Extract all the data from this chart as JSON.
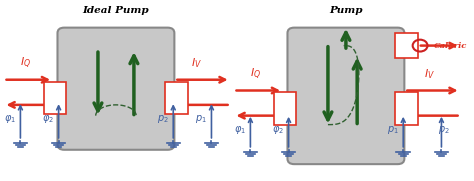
{
  "white_bg": "#ffffff",
  "box_color": "#c8c8c8",
  "box_edge": "#888888",
  "red_arrow": "#e03020",
  "blue_arrow": "#4060a0",
  "green_arrow": "#206020",
  "dashed_curve": "#306030",
  "caloric_circle": "#cc2020",
  "title1": "Ideal Pump",
  "title2": "Pump",
  "label_caloric": "Caloric"
}
